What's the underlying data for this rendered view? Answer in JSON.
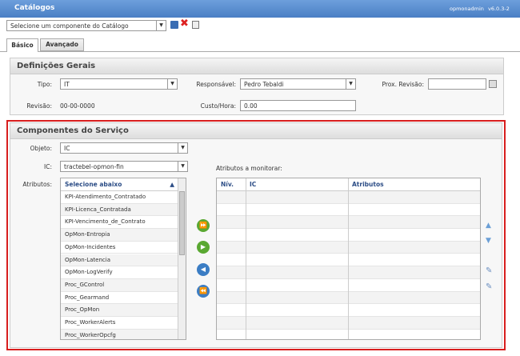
{
  "header": {
    "title": "Catálogos",
    "user": "opmonadmin",
    "version": "v6.0.3-2"
  },
  "toolbar": {
    "select": "Selecione um componente do Catálogo"
  },
  "tabs": [
    "Básico",
    "Avançado"
  ],
  "general": {
    "title": "Definições Gerais",
    "tipo_label": "Tipo:",
    "tipo": "IT",
    "responsavel_label": "Responsável:",
    "responsavel": "Pedro Tebaldi",
    "prox_revisao_label": "Prox. Revisão:",
    "revisao_label": "Revisão:",
    "revisao": "00-00-0000",
    "custo_label": "Custo/Hora:",
    "custo": "0.00"
  },
  "components": {
    "title": "Componentes do Serviço",
    "objeto_label": "Objeto:",
    "objeto": "IC",
    "ic_label": "IC:",
    "ic": "tractebel-opmon-fin",
    "atributos_label": "Atributos:",
    "list_header": "Selecione abaixo",
    "items": [
      "KPI-Atendimento_Contratado",
      "KPI-Licenca_Contratada",
      "KPI-Vencimento_de_Contrato",
      "OpMon-Entropia",
      "OpMon-Incidentes",
      "OpMon-Latencia",
      "OpMon-LogVerify",
      "Proc_GControl",
      "Proc_Gearmand",
      "Proc_OpMon",
      "Proc_WorkerAlerts",
      "Proc_WorkerOpcfg"
    ],
    "monitor_label": "Atributos a monitorar:",
    "table_headers": [
      "Nív.",
      "IC",
      "Atributos"
    ]
  }
}
